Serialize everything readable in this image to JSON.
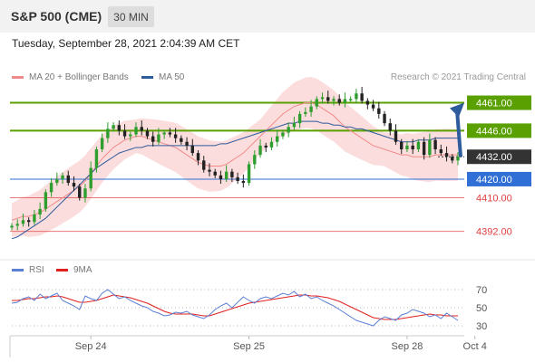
{
  "header": {
    "symbol": "S&P 500 (CME)",
    "interval": "30 MIN"
  },
  "datetime": "Tuesday, September 28, 2021 2:04:39 AM CET",
  "legend": {
    "ma20": {
      "label": "MA 20 + Bollinger Bands",
      "color": "#f08a8a"
    },
    "ma50": {
      "label": "MA 50",
      "color": "#2e5b9c"
    },
    "credit": "Research © 2021 Trading Central"
  },
  "rsi_legend": {
    "rsi": {
      "label": "RSI",
      "color": "#5b7fd4"
    },
    "ma9": {
      "label": "9MA",
      "color": "#e0201e"
    }
  },
  "colors": {
    "up": "#2e9e2e",
    "down": "#222222",
    "resistance": "#5aa000",
    "support": "#2f6fd6",
    "support2": "#e04040",
    "arrow": "#2e5b9c",
    "band": "#fbd5d5",
    "current_bg": "#333333"
  },
  "chart_data": {
    "type": "candlestick",
    "price_ylim": [
      4385,
      4470
    ],
    "levels": [
      {
        "value": 4461.0,
        "label": "4461.00",
        "kind": "resistance"
      },
      {
        "value": 4446.0,
        "label": "4446.00",
        "kind": "resistance"
      },
      {
        "value": 4432.0,
        "label": "4432.00",
        "kind": "current"
      },
      {
        "value": 4420.0,
        "label": "4420.00",
        "kind": "support"
      },
      {
        "value": 4410.0,
        "label": "4410.00",
        "kind": "support2"
      },
      {
        "value": 4392.0,
        "label": "4392.00",
        "kind": "support2"
      }
    ],
    "x_ticks": [
      {
        "label": "Sep 24",
        "index": 14
      },
      {
        "label": "Sep 25",
        "index": 42
      },
      {
        "label": "Sep 28",
        "index": 70
      },
      {
        "label": "Oct 4",
        "index": 82
      }
    ],
    "closes": [
      4395,
      4396,
      4398,
      4397,
      4401,
      4404,
      4413,
      4418,
      4420,
      4422,
      4418,
      4416,
      4410,
      4415,
      4426,
      4436,
      4442,
      4447,
      4449,
      4446,
      4443,
      4444,
      4448,
      4446,
      4443,
      4440,
      4444,
      4445,
      4444,
      4442,
      4440,
      4438,
      4434,
      4430,
      4425,
      4424,
      4422,
      4420,
      4424,
      4421,
      4419,
      4418,
      4428,
      4433,
      4438,
      4437,
      4440,
      4443,
      4445,
      4448,
      4450,
      4455,
      4456,
      4459,
      4463,
      4464,
      4462,
      4463,
      4461,
      4463,
      4463,
      4466,
      4462,
      4460,
      4458,
      4455,
      4450,
      4446,
      4440,
      4436,
      4438,
      4436,
      4440,
      4433,
      4441,
      4436,
      4434,
      4432,
      4430,
      4432
    ],
    "ma20": [
      4398,
      4399,
      4400,
      4400,
      4401,
      4402,
      4404,
      4406,
      4408,
      4410,
      4412,
      4414,
      4416,
      4419,
      4423,
      4427,
      4431,
      4434,
      4437,
      4439,
      4441,
      4442,
      4443,
      4443,
      4442,
      4441,
      4440,
      4439,
      4438,
      4437,
      4435,
      4433,
      4431,
      4429,
      4428,
      4427,
      4427,
      4427,
      4428,
      4430,
      4432,
      4434,
      4437,
      4440,
      4443,
      4446,
      4449,
      4452,
      4455,
      4457,
      4459,
      4460,
      4461,
      4461,
      4460,
      4458,
      4456,
      4454,
      4451,
      4448,
      4446,
      4444,
      4442,
      4440,
      4438,
      4437,
      4436,
      4435,
      4434,
      4433,
      4433,
      4432,
      4432,
      4432,
      4432,
      4433,
      4433,
      4433,
      4433,
      4433
    ],
    "ma50": [
      4388,
      4389,
      4391,
      4393,
      4395,
      4397,
      4399,
      4402,
      4405,
      4408,
      4411,
      4414,
      4417,
      4420,
      4423,
      4426,
      4428,
      4430,
      4432,
      4434,
      4435,
      4436,
      4437,
      4437,
      4438,
      4438,
      4438,
      4438,
      4438,
      4438,
      4438,
      4438,
      4438,
      4438,
      4438,
      4438,
      4438,
      4439,
      4439,
      4440,
      4441,
      4442,
      4443,
      4444,
      4445,
      4446,
      4447,
      4448,
      4449,
      4450,
      4450,
      4451,
      4451,
      4451,
      4451,
      4450,
      4450,
      4449,
      4449,
      4448,
      4448,
      4447,
      4447,
      4446,
      4445,
      4444,
      4443,
      4442,
      4441,
      4440,
      4440,
      4440,
      4441,
      4441,
      4441,
      4442,
      4442,
      4442,
      4442,
      4442
    ],
    "rsi_ylim": [
      20,
      80
    ],
    "rsi_levels": [
      70,
      50,
      30
    ],
    "rsi": [
      55,
      56,
      60,
      62,
      58,
      65,
      60,
      63,
      66,
      58,
      55,
      52,
      48,
      63,
      60,
      58,
      66,
      70,
      65,
      60,
      62,
      58,
      55,
      52,
      50,
      46,
      44,
      41,
      42,
      45,
      44,
      46,
      42,
      40,
      38,
      42,
      48,
      52,
      55,
      50,
      56,
      62,
      58,
      55,
      60,
      62,
      60,
      63,
      66,
      64,
      68,
      62,
      65,
      60,
      62,
      58,
      55,
      52,
      48,
      44,
      40,
      36,
      34,
      32,
      30,
      36,
      40,
      38,
      36,
      42,
      44,
      48,
      46,
      44,
      40,
      42,
      38,
      44,
      40,
      36
    ],
    "ma9": [
      58,
      58,
      59,
      60,
      60,
      61,
      62,
      62,
      63,
      62,
      60,
      58,
      56,
      56,
      57,
      58,
      60,
      62,
      64,
      63,
      62,
      61,
      59,
      57,
      55,
      52,
      49,
      46,
      44,
      43,
      43,
      43,
      43,
      42,
      41,
      41,
      43,
      45,
      47,
      49,
      51,
      53,
      55,
      56,
      57,
      58,
      59,
      60,
      61,
      62,
      63,
      64,
      64,
      63,
      63,
      62,
      61,
      59,
      57,
      54,
      51,
      48,
      45,
      42,
      39,
      38,
      37,
      37,
      37,
      38,
      39,
      40,
      41,
      42,
      43,
      42,
      42,
      41,
      41,
      41
    ]
  }
}
